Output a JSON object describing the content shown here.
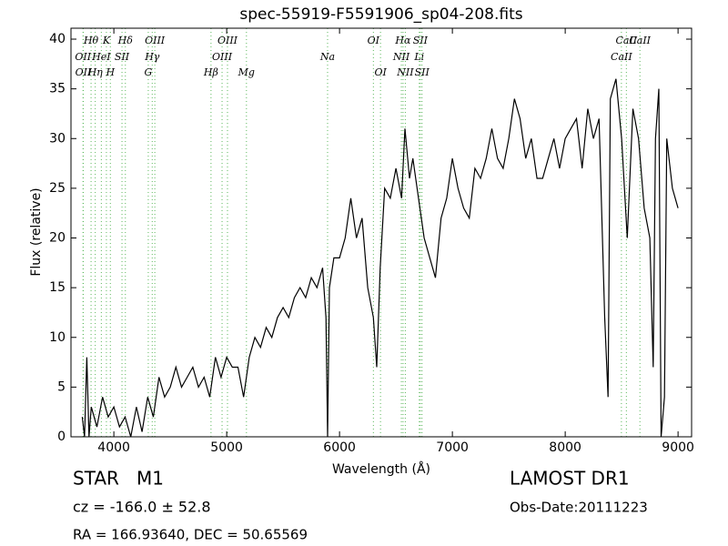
{
  "chart_data": {
    "type": "line",
    "title": "spec-55919-F5591906_sp04-208.fits",
    "x_label": "Wavelength (Å)",
    "y_label": "Flux (relative)",
    "xlim": [
      3620,
      9120
    ],
    "ylim": [
      0,
      41.1
    ],
    "xticks": [
      4000,
      5000,
      6000,
      7000,
      8000,
      9000
    ],
    "yticks": [
      0,
      5,
      10,
      15,
      20,
      25,
      30,
      35,
      40
    ],
    "x": [
      3720,
      3740,
      3760,
      3780,
      3800,
      3850,
      3900,
      3950,
      4000,
      4050,
      4100,
      4150,
      4200,
      4250,
      4300,
      4350,
      4400,
      4450,
      4500,
      4550,
      4600,
      4650,
      4700,
      4750,
      4800,
      4850,
      4900,
      4950,
      5000,
      5050,
      5100,
      5150,
      5200,
      5250,
      5300,
      5350,
      5400,
      5450,
      5500,
      5550,
      5600,
      5650,
      5700,
      5750,
      5800,
      5850,
      5880,
      5894,
      5910,
      5950,
      6000,
      6050,
      6100,
      6150,
      6200,
      6250,
      6300,
      6330,
      6360,
      6400,
      6450,
      6500,
      6550,
      6580,
      6620,
      6650,
      6700,
      6750,
      6800,
      6850,
      6900,
      6950,
      7000,
      7050,
      7100,
      7150,
      7200,
      7250,
      7300,
      7350,
      7400,
      7450,
      7500,
      7550,
      7600,
      7650,
      7700,
      7750,
      7800,
      7850,
      7900,
      7950,
      8000,
      8050,
      8100,
      8150,
      8200,
      8250,
      8300,
      8350,
      8380,
      8400,
      8450,
      8500,
      8550,
      8600,
      8650,
      8700,
      8750,
      8780,
      8800,
      8830,
      8850,
      8880,
      8900,
      8950,
      9000
    ],
    "series": [
      {
        "color": "#000000",
        "values": [
          2,
          0,
          8,
          0,
          3,
          1,
          4,
          2,
          3,
          1,
          2,
          0,
          3,
          0.5,
          4,
          2,
          6,
          4,
          5,
          7,
          5,
          6,
          7,
          5,
          6,
          4,
          8,
          6,
          8,
          7,
          7,
          4,
          8,
          10,
          9,
          11,
          10,
          12,
          13,
          12,
          14,
          15,
          14,
          16,
          15,
          17,
          12,
          0,
          15,
          18,
          18,
          20,
          24,
          20,
          22,
          15,
          12,
          7,
          17,
          25,
          24,
          27,
          24,
          31,
          26,
          28,
          24,
          20,
          18,
          16,
          22,
          24,
          28,
          25,
          23,
          22,
          27,
          26,
          28,
          31,
          28,
          27,
          30,
          34,
          32,
          28,
          30,
          26,
          26,
          28,
          30,
          27,
          30,
          31,
          32,
          27,
          33,
          30,
          32,
          12,
          4,
          34,
          36,
          30,
          20,
          33,
          30,
          23,
          20,
          7,
          30,
          35,
          0,
          4,
          30,
          25,
          23
        ]
      }
    ],
    "lines": [
      {
        "wavelength": 3798,
        "label": "Hθ"
      },
      {
        "wavelength": 3727,
        "label": "OII"
      },
      {
        "wavelength": 3729,
        "label": "OII"
      },
      {
        "wavelength": 3934,
        "label": "K"
      },
      {
        "wavelength": 3889,
        "label": "HeI"
      },
      {
        "wavelength": 3835,
        "label": "Hη"
      },
      {
        "wavelength": 4102,
        "label": "Hδ"
      },
      {
        "wavelength": 4072,
        "label": "SII"
      },
      {
        "wavelength": 3969,
        "label": "H"
      },
      {
        "wavelength": 4363,
        "label": "OIII"
      },
      {
        "wavelength": 4340,
        "label": "Hγ"
      },
      {
        "wavelength": 4305,
        "label": "G"
      },
      {
        "wavelength": 5007,
        "label": "OIII"
      },
      {
        "wavelength": 4959,
        "label": "OIII"
      },
      {
        "wavelength": 4861,
        "label": "Hβ"
      },
      {
        "wavelength": 6300,
        "label": "OI"
      },
      {
        "wavelength": 5894,
        "label": "Na"
      },
      {
        "wavelength": 5175,
        "label": "Mg"
      },
      {
        "wavelength": 6563,
        "label": "Hα"
      },
      {
        "wavelength": 6548,
        "label": "NII"
      },
      {
        "wavelength": 6363,
        "label": "OI"
      },
      {
        "wavelength": 6716,
        "label": "SII"
      },
      {
        "wavelength": 6707,
        "label": "Li"
      },
      {
        "wavelength": 6583,
        "label": "NII"
      },
      {
        "wavelength": 8542,
        "label": "CaII"
      },
      {
        "wavelength": 8498,
        "label": "CaII"
      },
      {
        "wavelength": 6731,
        "label": "SII"
      },
      {
        "wavelength": 8662,
        "label": "CaII"
      }
    ],
    "annotations": [
      "STAR   M1",
      "cz = -166.0 ± 52.8",
      "RA = 166.93640, DEC = 50.65569",
      "LAMOST DR1",
      "Obs-Date:20111223"
    ]
  }
}
